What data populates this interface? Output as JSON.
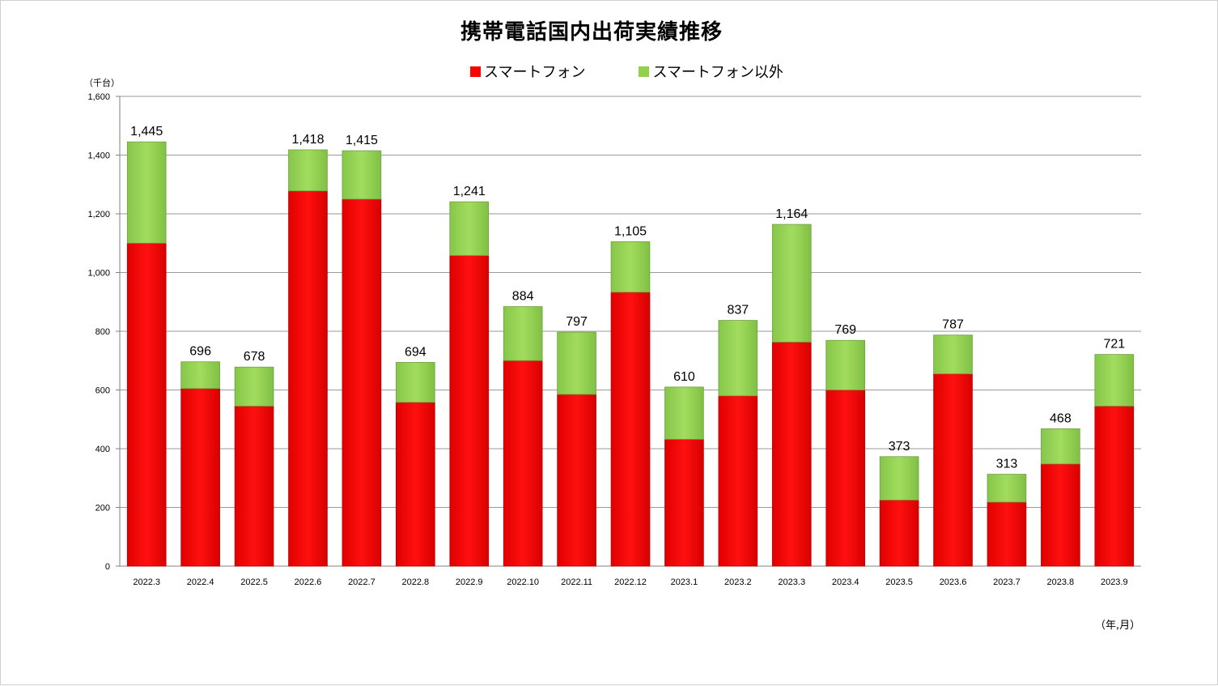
{
  "chart_data": {
    "type": "bar",
    "stacked": true,
    "title": "携帯電話国内出荷実績推移",
    "y_unit": "（千台）",
    "x_unit": "（年,月）",
    "ylim": [
      0,
      1600
    ],
    "yticks": [
      "0",
      "200",
      "400",
      "600",
      "800",
      "1,000",
      "1,200",
      "1,400",
      "1,600"
    ],
    "grid": true,
    "legend_position": "top",
    "categories": [
      "2022.3",
      "2022.4",
      "2022.5",
      "2022.6",
      "2022.7",
      "2022.8",
      "2022.9",
      "2022.10",
      "2022.11",
      "2022.12",
      "2023.1",
      "2023.2",
      "2023.3",
      "2023.4",
      "2023.5",
      "2023.6",
      "2023.7",
      "2023.8",
      "2023.9"
    ],
    "series": [
      {
        "name": "スマートフォン",
        "color": "#ff0000",
        "values": [
          1100,
          605,
          545,
          1278,
          1250,
          558,
          1058,
          700,
          585,
          933,
          432,
          580,
          763,
          600,
          225,
          655,
          218,
          348,
          545
        ]
      },
      {
        "name": "スマートフォン以外",
        "color": "#92d050",
        "values": [
          345,
          91,
          133,
          140,
          165,
          136,
          183,
          184,
          212,
          172,
          178,
          257,
          401,
          169,
          148,
          132,
          95,
          120,
          176
        ]
      }
    ],
    "totals": [
      "1,445",
      "696",
      "678",
      "1,418",
      "1,415",
      "694",
      "1,241",
      "884",
      "797",
      "1,105",
      "610",
      "837",
      "1,164",
      "769",
      "373",
      "787",
      "313",
      "468",
      "721"
    ]
  }
}
